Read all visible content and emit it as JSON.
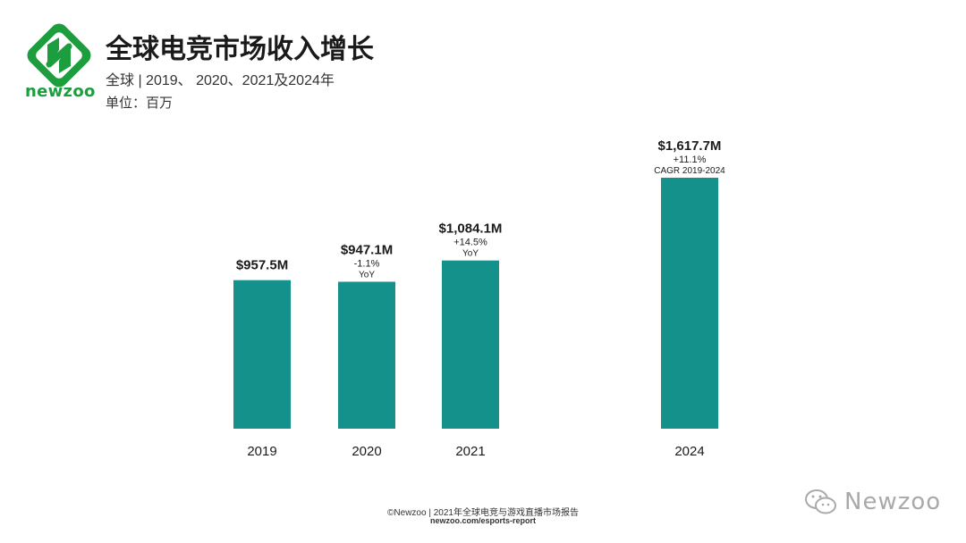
{
  "header": {
    "brand": "newzoo",
    "title": "全球电竞市场收入增长",
    "subtitle": "全球 | 2019、 2020、2021及2024年",
    "unit": "单位：百万"
  },
  "colors": {
    "bar": "#15918b",
    "brand_green": "#1d9e3e",
    "text": "#1a1a1a"
  },
  "chart_data": {
    "type": "bar",
    "categories": [
      "2019",
      "2020",
      "2021",
      "2024"
    ],
    "values": [
      957.5,
      947.1,
      1084.1,
      1617.7
    ],
    "data_labels": [
      "$957.5M",
      "$947.1M",
      "$1,084.1M",
      "$1,617.7M"
    ],
    "growth_labels": [
      "",
      "-1.1%",
      "+14.5%",
      "+11.1%"
    ],
    "growth_notes": [
      "",
      "YoY",
      "YoY",
      "CAGR 2019-2024"
    ],
    "xlabel": "",
    "ylabel": "",
    "ylim": [
      0,
      1617.7
    ],
    "grid": false,
    "legend": "none"
  },
  "footer": {
    "line1": "©Newzoo | 2021年全球电竞与游戏直播市场报告",
    "line2": "newzoo.com/esports-report"
  },
  "watermark": {
    "text": "Newzoo",
    "icon": "wechat-icon"
  }
}
